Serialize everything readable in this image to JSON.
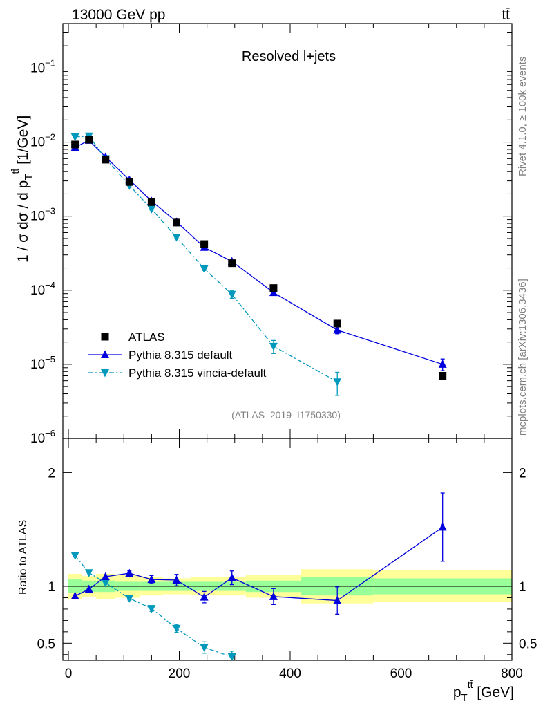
{
  "header": {
    "energy_label": "13000 GeV pp",
    "process_label": "tt̄"
  },
  "side_labels": {
    "rivet": "Rivet 4.1.0, ≥ 100k events",
    "mcplots": "mcplots.cern.ch [arXiv:1306.3436]"
  },
  "chart_data": [
    {
      "type": "scatter",
      "panel": "main",
      "title": "Resolved l+jets",
      "analysis_id": "(ATLAS_2019_I1750330)",
      "ylabel": "1 / σ dσ / d p_T^{tt̄} [1/GeV]",
      "yscale": "log",
      "ylim": [
        1e-06,
        0.4
      ],
      "xlim": [
        -10,
        800
      ],
      "y_tick_labels": [
        {
          "value": 1e-06,
          "base": "10",
          "exp": "−6"
        },
        {
          "value": 1e-05,
          "base": "10",
          "exp": "−5"
        },
        {
          "value": 0.0001,
          "base": "10",
          "exp": "−4"
        },
        {
          "value": 0.001,
          "base": "10",
          "exp": "−3"
        },
        {
          "value": 0.01,
          "base": "10",
          "exp": "−2"
        },
        {
          "value": 0.1,
          "base": "10",
          "exp": "−1"
        }
      ],
      "legend": [
        "ATLAS",
        "Pythia 8.315 default",
        "Pythia 8.315 vincia-default"
      ],
      "x": [
        12,
        37,
        67,
        110,
        150,
        195,
        245,
        295,
        370,
        485,
        675
      ],
      "bin_edges": [
        0,
        25,
        50,
        85,
        130,
        170,
        220,
        270,
        320,
        420,
        550,
        800
      ],
      "series": [
        {
          "name": "ATLAS",
          "marker": "square",
          "color": "#000000",
          "values": [
            0.0093,
            0.0108,
            0.0058,
            0.0029,
            0.00155,
            0.00082,
            0.00042,
            0.000232,
            0.000107,
            3.55e-05,
            7e-06
          ]
        },
        {
          "name": "Pythia 8.315 default",
          "marker": "triangle-up",
          "color": "#0000dd",
          "values": [
            0.0085,
            0.0106,
            0.0063,
            0.0031,
            0.0016,
            0.00084,
            0.00038,
            0.000245,
            9.3e-05,
            2.9e-05,
            1e-05
          ],
          "err": [
            0.0004,
            0.0004,
            0.0002,
            0.0001,
            5e-05,
            3e-05,
            1.5e-05,
            1e-05,
            6e-06,
            3.2e-06,
            1.8e-06
          ]
        },
        {
          "name": "Pythia 8.315 vincia-default",
          "marker": "triangle-down",
          "color": "#0099bb",
          "values": [
            0.0118,
            0.0121,
            0.006,
            0.0026,
            0.00125,
            0.00052,
            0.000195,
            8.8e-05,
            1.75e-05,
            5.8e-06
          ],
          "err": [
            0.0004,
            0.0004,
            0.0002,
            0.0001,
            4e-05,
            2e-05,
            1e-05,
            1e-05,
            3.5e-06,
            2e-06
          ]
        }
      ]
    },
    {
      "type": "scatter",
      "panel": "ratio",
      "ylabel": "Ratio to ATLAS",
      "xlabel": "p_T^{tt̄} [GeV]",
      "ylim": [
        0.35,
        2.3
      ],
      "xlim": [
        -10,
        800
      ],
      "x_ticks": [
        0,
        200,
        400,
        600,
        800
      ],
      "y_ticks": [
        0.5,
        1,
        2
      ],
      "reference_line": 1,
      "bin_edges": [
        0,
        25,
        50,
        85,
        130,
        170,
        220,
        270,
        320,
        420,
        550,
        800
      ],
      "band_inner": [
        0.06,
        0.05,
        0.05,
        0.04,
        0.04,
        0.04,
        0.04,
        0.04,
        0.05,
        0.08,
        0.07
      ],
      "band_outer": [
        0.11,
        0.09,
        0.11,
        0.1,
        0.08,
        0.07,
        0.08,
        0.08,
        0.1,
        0.15,
        0.14
      ],
      "x": [
        12,
        37,
        67,
        110,
        150,
        195,
        245,
        295,
        370,
        485,
        675
      ],
      "series": [
        {
          "name": "Pythia 8.315 default",
          "marker": "triangle-up",
          "color": "#0000dd",
          "values": [
            0.915,
            0.975,
            1.085,
            1.115,
            1.06,
            1.055,
            0.905,
            1.075,
            0.91,
            0.875,
            1.52
          ],
          "err": [
            0.0,
            0.0,
            0.0,
            0.02,
            0.035,
            0.05,
            0.05,
            0.06,
            0.07,
            0.12,
            0.3
          ]
        },
        {
          "name": "Pythia 8.315 vincia-default",
          "marker": "triangle-down",
          "color": "#0099bb",
          "values": [
            1.27,
            1.12,
            1.03,
            0.895,
            0.805,
            0.63,
            0.462,
            0.38
          ],
          "err": [
            0.0,
            0.0,
            0.0,
            0.015,
            0.025,
            0.035,
            0.05,
            0.05
          ]
        }
      ]
    }
  ]
}
